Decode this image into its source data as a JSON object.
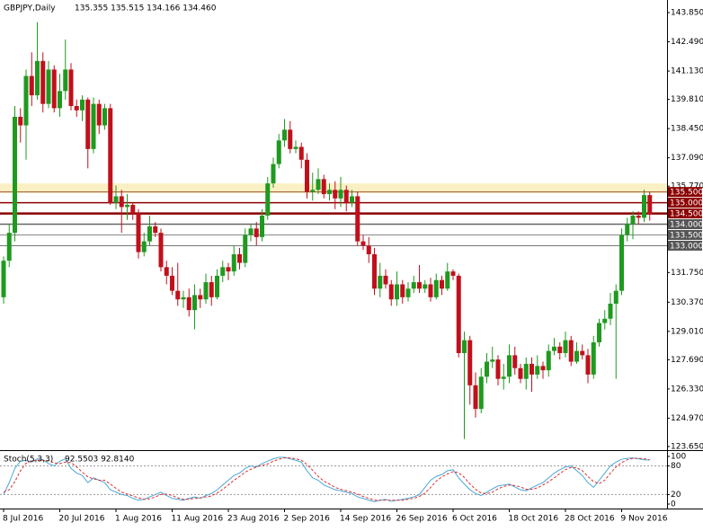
{
  "chart_data": [
    {
      "type": "candlestick",
      "title": "GBPJPY,Daily",
      "subtitle": "135.355 135.515 134.166 134.460",
      "categories": [
        "8 Jul 2016",
        null,
        null,
        null,
        null,
        null,
        null,
        null,
        null,
        null,
        "20 Jul 2016",
        null,
        null,
        null,
        null,
        null,
        null,
        null,
        null,
        null,
        "1 Aug 2016",
        null,
        null,
        null,
        null,
        null,
        null,
        null,
        null,
        null,
        "11 Aug 2016",
        null,
        null,
        null,
        null,
        null,
        null,
        null,
        null,
        null,
        "23 Aug 2016",
        null,
        null,
        null,
        null,
        null,
        null,
        null,
        null,
        null,
        "2 Sep 2016",
        null,
        null,
        null,
        null,
        null,
        null,
        null,
        null,
        null,
        "14 Sep 2016",
        null,
        null,
        null,
        null,
        null,
        null,
        null,
        null,
        null,
        "26 Sep 2016",
        null,
        null,
        null,
        null,
        null,
        null,
        null,
        null,
        null,
        "6 Oct 2016",
        null,
        null,
        null,
        null,
        null,
        null,
        null,
        null,
        null,
        "18 Oct 2016",
        null,
        null,
        null,
        null,
        null,
        null,
        null,
        null,
        null,
        "28 Oct 2016",
        null,
        null,
        null,
        null,
        null,
        null,
        null,
        null,
        null,
        "9 Nov 2016",
        null,
        null,
        null,
        null,
        null
      ],
      "open": [
        130.6,
        132.3,
        133.6,
        139.0,
        138.6,
        140.9,
        140.0,
        141.6,
        139.6,
        141.2,
        139.4,
        140.2,
        141.2,
        139.5,
        139.3,
        139.8,
        137.5,
        139.6,
        138.6,
        139.4,
        135.0,
        135.3,
        134.8,
        134.9,
        134.5,
        132.7,
        133.2,
        133.9,
        133.6,
        132.0,
        131.6,
        130.9,
        130.5,
        130.6,
        130.0,
        130.7,
        130.5,
        131.3,
        130.6,
        131.6,
        132.0,
        131.8,
        132.6,
        132.2,
        133.5,
        133.8,
        133.4,
        134.4,
        135.9,
        136.8,
        137.9,
        138.4,
        137.5,
        137.6,
        137.0,
        135.5,
        135.6,
        136.1,
        135.4,
        135.6,
        135.2,
        135.6,
        135.0,
        135.3,
        133.2,
        133.0,
        132.6,
        131.0,
        131.6,
        131.2,
        130.5,
        131.2,
        130.6,
        131.0,
        131.3,
        131.0,
        131.2,
        130.6,
        131.4,
        131.0,
        131.8,
        131.6,
        128.0,
        128.6,
        126.5,
        125.4,
        126.9,
        127.6,
        127.7,
        126.8,
        126.9,
        127.9,
        127.3,
        126.8,
        127.5,
        127.0,
        127.4,
        127.2,
        128.1,
        128.3,
        128.0,
        128.6,
        127.6,
        128.1,
        127.9,
        127.0,
        128.5,
        129.4,
        129.6,
        130.3,
        130.9,
        133.5,
        134.0,
        134.4,
        134.3,
        135.355
      ],
      "high": [
        132.5,
        134.0,
        139.5,
        139.4,
        141.2,
        142.0,
        143.4,
        142.0,
        141.6,
        141.4,
        141.0,
        142.6,
        141.5,
        139.8,
        140.0,
        139.9,
        139.9,
        139.8,
        139.6,
        139.6,
        135.8,
        135.6,
        135.4,
        135.0,
        134.7,
        133.6,
        134.4,
        134.1,
        133.8,
        132.3,
        132.0,
        132.2,
        130.9,
        131.0,
        131.2,
        131.0,
        131.7,
        131.6,
        131.9,
        132.3,
        132.2,
        133.0,
        132.9,
        133.8,
        134.0,
        134.1,
        134.7,
        136.2,
        137.1,
        138.2,
        138.9,
        138.8,
        137.9,
        137.8,
        137.3,
        136.4,
        136.6,
        136.3,
        135.9,
        136.0,
        136.2,
        135.8,
        135.6,
        135.5,
        133.5,
        133.4,
        132.9,
        132.2,
        131.9,
        131.4,
        131.8,
        131.4,
        131.3,
        131.6,
        132.1,
        131.4,
        131.5,
        131.7,
        131.6,
        132.2,
        131.9,
        131.7,
        129.0,
        128.8,
        127.1,
        127.3,
        128.0,
        128.3,
        127.9,
        127.5,
        128.4,
        128.3,
        127.5,
        127.8,
        127.8,
        127.9,
        127.6,
        128.4,
        128.7,
        128.5,
        129.0,
        128.8,
        128.5,
        128.4,
        128.2,
        128.8,
        129.6,
        130.0,
        130.8,
        131.2,
        133.8,
        134.3,
        134.6,
        134.6,
        135.6,
        135.515
      ],
      "low": [
        130.3,
        132.0,
        133.2,
        137.8,
        137.0,
        139.5,
        139.8,
        139.2,
        139.4,
        139.2,
        139.0,
        139.8,
        139.3,
        139.0,
        138.8,
        136.6,
        137.3,
        138.2,
        138.4,
        134.9,
        134.7,
        133.6,
        134.2,
        134.2,
        132.4,
        132.5,
        133.0,
        133.4,
        131.8,
        131.2,
        130.7,
        130.2,
        130.1,
        129.7,
        129.1,
        130.1,
        130.3,
        130.2,
        130.5,
        131.3,
        131.4,
        131.6,
        131.9,
        132.0,
        133.2,
        133.0,
        133.2,
        134.2,
        135.7,
        136.6,
        137.6,
        137.3,
        137.3,
        136.6,
        135.2,
        135.1,
        135.4,
        135.2,
        135.1,
        134.7,
        134.8,
        134.6,
        134.8,
        133.0,
        132.8,
        132.2,
        130.7,
        130.6,
        131.0,
        130.2,
        130.2,
        130.3,
        130.4,
        130.8,
        130.8,
        130.8,
        130.4,
        130.5,
        130.7,
        130.9,
        131.4,
        127.8,
        124.0,
        125.6,
        125.0,
        125.2,
        126.6,
        127.3,
        126.5,
        126.3,
        126.6,
        127.0,
        126.6,
        126.3,
        126.2,
        126.8,
        126.8,
        126.9,
        127.9,
        127.7,
        127.8,
        127.4,
        127.5,
        127.7,
        126.6,
        126.8,
        128.3,
        129.1,
        129.3,
        126.8,
        130.7,
        133.2,
        133.3,
        134.0,
        134.1,
        134.166
      ],
      "close": [
        132.3,
        133.6,
        139.0,
        138.6,
        140.9,
        140.0,
        141.6,
        139.6,
        141.2,
        139.4,
        140.2,
        141.2,
        139.5,
        139.3,
        139.8,
        137.5,
        139.6,
        138.6,
        139.4,
        135.0,
        135.3,
        134.8,
        134.9,
        134.5,
        132.7,
        133.2,
        133.9,
        133.6,
        132.0,
        131.6,
        130.9,
        130.5,
        130.6,
        130.0,
        130.7,
        130.5,
        131.3,
        130.6,
        131.6,
        132.0,
        131.8,
        132.6,
        132.2,
        133.5,
        133.8,
        133.4,
        134.4,
        135.9,
        136.8,
        137.9,
        138.4,
        137.5,
        137.6,
        137.0,
        135.5,
        135.6,
        136.1,
        135.4,
        135.6,
        135.2,
        135.6,
        135.0,
        135.3,
        133.2,
        133.0,
        132.6,
        131.0,
        131.6,
        131.2,
        130.5,
        131.2,
        130.6,
        131.0,
        131.3,
        131.0,
        131.2,
        130.6,
        131.4,
        131.0,
        131.8,
        131.6,
        128.0,
        128.6,
        126.5,
        125.4,
        126.9,
        127.6,
        127.7,
        126.8,
        126.9,
        127.9,
        127.3,
        126.8,
        127.5,
        127.0,
        127.4,
        127.2,
        128.1,
        128.3,
        128.0,
        128.6,
        127.6,
        128.1,
        127.9,
        127.0,
        128.5,
        129.4,
        129.6,
        130.3,
        130.9,
        133.5,
        134.0,
        134.4,
        134.3,
        135.355,
        134.46
      ],
      "up_color": "#1f9a1f",
      "down_color": "#c0101c",
      "ylim": [
        123.482,
        144.437
      ],
      "yticks": [
        {
          "value": 143.85,
          "label": "143.850"
        },
        {
          "value": 142.49,
          "label": "142.490"
        },
        {
          "value": 141.13,
          "label": "141.130"
        },
        {
          "value": 139.81,
          "label": "139.810"
        },
        {
          "value": 138.45,
          "label": "138.450"
        },
        {
          "value": 137.09,
          "label": "137.090"
        },
        {
          "value": 135.77,
          "label": "135.770"
        },
        {
          "value": 131.75,
          "label": "131.750"
        },
        {
          "value": 130.37,
          "label": "130.370"
        },
        {
          "value": 129.01,
          "label": "129.010"
        },
        {
          "value": 127.69,
          "label": "127.690"
        },
        {
          "value": 126.33,
          "label": "126.330"
        },
        {
          "value": 124.97,
          "label": "124.970"
        },
        {
          "value": 123.65,
          "label": "123.650"
        }
      ],
      "band": [
        135.45,
        135.9
      ],
      "band_color": "#fbf0c4",
      "levels": [
        {
          "value": 135.5,
          "label": "135.500",
          "color": "#a0522d",
          "box_color": "#8b0000",
          "width": 1
        },
        {
          "value": 135.0,
          "label": "135.000",
          "color": "#8b0000",
          "box_color": "#8b0000",
          "width": 1.5
        },
        {
          "value": 134.5,
          "label": "134.500",
          "color": "#8b0000",
          "box_color": "#8b0000",
          "width": 2.5
        },
        {
          "value": 134.0,
          "label": "134.000",
          "color": "#666666",
          "box_color": "#555555",
          "width": 1.5
        },
        {
          "value": 133.5,
          "label": "133.500",
          "color": "#888888",
          "box_color": "#555555",
          "width": 1
        },
        {
          "value": 133.0,
          "label": "133.000",
          "color": "#777777",
          "box_color": "#555555",
          "width": 1
        }
      ]
    },
    {
      "type": "line",
      "title": "Stoch(5,3,3)",
      "subtitle": "92.5503 92.8140",
      "ylim": [
        -9.4,
        111.3
      ],
      "yticks": [
        0,
        20,
        80,
        100
      ],
      "levels": [
        20,
        80
      ],
      "series": [
        {
          "color": "#4aa8d8",
          "dash": false,
          "values": [
            20,
            45,
            75,
            90,
            92,
            88,
            95,
            93,
            85,
            80,
            90,
            95,
            75,
            65,
            60,
            45,
            55,
            50,
            45,
            30,
            25,
            20,
            18,
            12,
            8,
            10,
            15,
            20,
            25,
            18,
            12,
            10,
            8,
            12,
            15,
            12,
            18,
            22,
            30,
            40,
            50,
            60,
            65,
            75,
            80,
            78,
            85,
            90,
            95,
            98,
            98,
            95,
            92,
            88,
            70,
            55,
            50,
            40,
            35,
            30,
            28,
            25,
            22,
            15,
            12,
            8,
            5,
            8,
            10,
            6,
            8,
            10,
            12,
            15,
            20,
            35,
            50,
            58,
            62,
            70,
            72,
            55,
            42,
            30,
            22,
            18,
            25,
            32,
            38,
            40,
            42,
            36,
            30,
            28,
            34,
            40,
            45,
            55,
            65,
            72,
            78,
            80,
            70,
            60,
            45,
            35,
            50,
            65,
            80,
            88,
            94,
            96,
            97,
            95,
            93,
            92.5503
          ]
        },
        {
          "color": "#e03030",
          "dash": true,
          "values": [
            25,
            30,
            47,
            70,
            86,
            90,
            92,
            92,
            91,
            86,
            85,
            88,
            87,
            78,
            67,
            57,
            53,
            50,
            50,
            42,
            33,
            25,
            21,
            17,
            13,
            10,
            11,
            15,
            20,
            21,
            18,
            13,
            10,
            10,
            12,
            13,
            15,
            17,
            23,
            31,
            40,
            50,
            58,
            67,
            73,
            78,
            81,
            84,
            90,
            94,
            97,
            97,
            95,
            92,
            83,
            71,
            58,
            48,
            42,
            35,
            31,
            28,
            25,
            21,
            16,
            12,
            8,
            8,
            8,
            8,
            8,
            8,
            10,
            12,
            16,
            23,
            35,
            48,
            57,
            63,
            68,
            66,
            56,
            42,
            31,
            23,
            22,
            25,
            32,
            37,
            40,
            39,
            36,
            31,
            31,
            34,
            40,
            47,
            55,
            64,
            72,
            77,
            76,
            70,
            58,
            47,
            43,
            50,
            65,
            78,
            87,
            93,
            96,
            96,
            95,
            92.814
          ]
        }
      ]
    }
  ]
}
